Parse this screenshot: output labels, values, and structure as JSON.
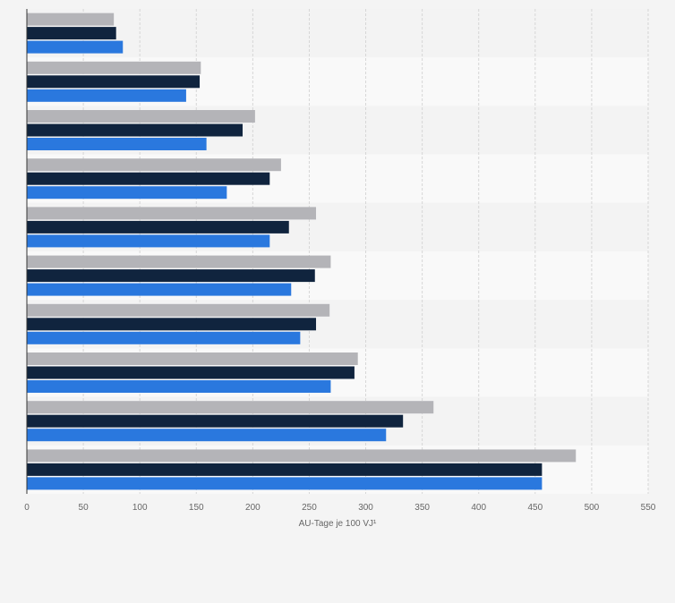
{
  "chart_data": {
    "type": "bar",
    "orientation": "horizontal",
    "categories": [
      "",
      "",
      "",
      "",
      "",
      "",
      "",
      "",
      "",
      ""
    ],
    "series": [
      {
        "color": "#b4b4b8",
        "values": [
          77,
          154,
          202,
          225,
          256,
          269,
          268,
          293,
          360,
          486
        ]
      },
      {
        "color": "#10243e",
        "values": [
          79,
          153,
          191,
          215,
          232,
          255,
          256,
          290,
          333,
          456
        ]
      },
      {
        "color": "#2a78de",
        "values": [
          85,
          141,
          159,
          177,
          215,
          234,
          242,
          269,
          318,
          456
        ]
      }
    ],
    "xlabel": "AU-Tage je 100 VJ¹",
    "ylabel": "",
    "xlim": [
      0,
      550
    ],
    "xticks": [
      "0",
      "50",
      "100",
      "150",
      "200",
      "250",
      "300",
      "350",
      "400",
      "450",
      "500",
      "550"
    ],
    "grid": true,
    "band_colors": [
      "#f3f3f3",
      "#f9f9f9"
    ]
  }
}
